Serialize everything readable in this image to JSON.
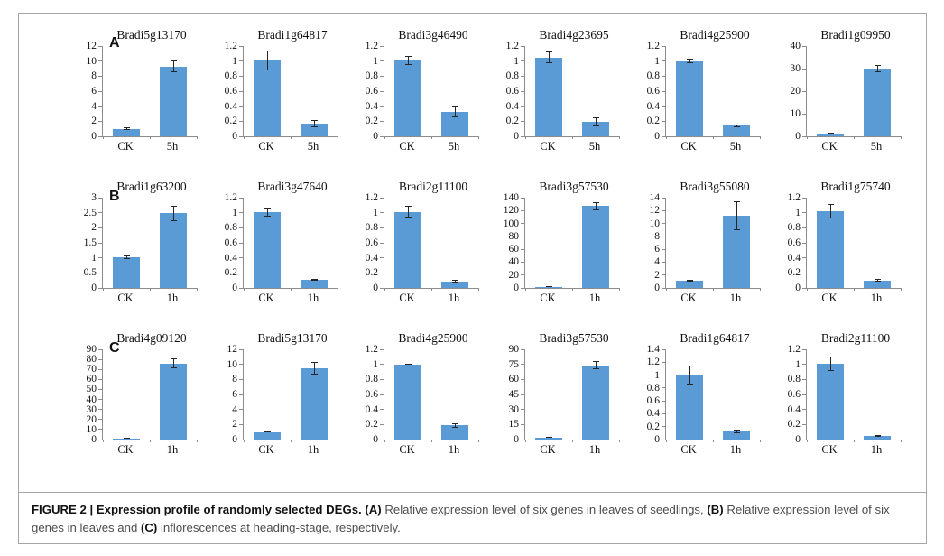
{
  "figure": {
    "panel_labels": [
      "A",
      "B",
      "C"
    ],
    "caption_segments": [
      {
        "text": "FIGURE 2 | Expression profile of randomly selected DEGs. ",
        "bold": true
      },
      {
        "text": "(A)",
        "bold": true
      },
      {
        "text": " Relative expression level of six genes in leaves of seedlings, ",
        "bold": false
      },
      {
        "text": "(B)",
        "bold": true
      },
      {
        "text": " Relative expression level of six genes in leaves and ",
        "bold": false
      },
      {
        "text": "(C)",
        "bold": true
      },
      {
        "text": " inflorescences at heading-stage, respectively.",
        "bold": false
      }
    ],
    "bar_color": "#5b9bd5",
    "axis_color": "#8c8c8c"
  },
  "chart_data": [
    {
      "type": "bar",
      "panel": "A",
      "title": "Bradi5g13170",
      "categories": [
        "CK",
        "5h"
      ],
      "values": [
        1.0,
        9.3
      ],
      "errors": [
        0.2,
        0.8
      ],
      "ylim": [
        0,
        12
      ],
      "ytick_step": 2
    },
    {
      "type": "bar",
      "panel": "A",
      "title": "Bradi1g64817",
      "categories": [
        "CK",
        "5h"
      ],
      "values": [
        1.01,
        0.17
      ],
      "errors": [
        0.13,
        0.05
      ],
      "ylim": [
        0,
        1.2
      ],
      "ytick_step": 0.2
    },
    {
      "type": "bar",
      "panel": "A",
      "title": "Bradi3g46490",
      "categories": [
        "CK",
        "5h"
      ],
      "values": [
        1.01,
        0.33
      ],
      "errors": [
        0.06,
        0.08
      ],
      "ylim": [
        0,
        1.2
      ],
      "ytick_step": 0.2
    },
    {
      "type": "bar",
      "panel": "A",
      "title": "Bradi4g23695",
      "categories": [
        "CK",
        "5h"
      ],
      "values": [
        1.05,
        0.19
      ],
      "errors": [
        0.08,
        0.06
      ],
      "ylim": [
        0,
        1.2
      ],
      "ytick_step": 0.2
    },
    {
      "type": "bar",
      "panel": "A",
      "title": "Bradi4g25900",
      "categories": [
        "CK",
        "5h"
      ],
      "values": [
        1.0,
        0.14
      ],
      "errors": [
        0.03,
        0.02
      ],
      "ylim": [
        0,
        1.2
      ],
      "ytick_step": 0.2
    },
    {
      "type": "bar",
      "panel": "A",
      "title": "Bradi1g09950",
      "categories": [
        "CK",
        "5h"
      ],
      "values": [
        1.2,
        30.0
      ],
      "errors": [
        0.3,
        1.5
      ],
      "ylim": [
        0,
        40
      ],
      "ytick_step": 10
    },
    {
      "type": "bar",
      "panel": "B",
      "title": "Bradi1g63200",
      "categories": [
        "CK",
        "1h"
      ],
      "values": [
        1.02,
        2.48
      ],
      "errors": [
        0.07,
        0.25
      ],
      "ylim": [
        0,
        3
      ],
      "ytick_step": 0.5
    },
    {
      "type": "bar",
      "panel": "B",
      "title": "Bradi3g47640",
      "categories": [
        "CK",
        "1h"
      ],
      "values": [
        1.01,
        0.11
      ],
      "errors": [
        0.06,
        0.01
      ],
      "ylim": [
        0,
        1.2
      ],
      "ytick_step": 0.2
    },
    {
      "type": "bar",
      "panel": "B",
      "title": "Bradi2g11100",
      "categories": [
        "CK",
        "1h"
      ],
      "values": [
        1.01,
        0.09
      ],
      "errors": [
        0.08,
        0.02
      ],
      "ylim": [
        0,
        1.2
      ],
      "ytick_step": 0.2
    },
    {
      "type": "bar",
      "panel": "B",
      "title": "Bradi3g57530",
      "categories": [
        "CK",
        "1h"
      ],
      "values": [
        2.0,
        127.0
      ],
      "errors": [
        1.0,
        6.0
      ],
      "ylim": [
        0,
        140
      ],
      "ytick_step": 20
    },
    {
      "type": "bar",
      "panel": "B",
      "title": "Bradi3g55080",
      "categories": [
        "CK",
        "1h"
      ],
      "values": [
        1.1,
        11.2
      ],
      "errors": [
        0.15,
        2.2
      ],
      "ylim": [
        0,
        14
      ],
      "ytick_step": 2
    },
    {
      "type": "bar",
      "panel": "B",
      "title": "Bradi1g75740",
      "categories": [
        "CK",
        "1h"
      ],
      "values": [
        1.02,
        0.1
      ],
      "errors": [
        0.1,
        0.02
      ],
      "ylim": [
        0,
        1.2
      ],
      "ytick_step": 0.2
    },
    {
      "type": "bar",
      "panel": "C",
      "title": "Bradi4g09120",
      "categories": [
        "CK",
        "1h"
      ],
      "values": [
        1.3,
        76.0
      ],
      "errors": [
        0.5,
        5.0
      ],
      "ylim": [
        0,
        90
      ],
      "ytick_step": 10
    },
    {
      "type": "bar",
      "panel": "C",
      "title": "Bradi5g13170",
      "categories": [
        "CK",
        "1h"
      ],
      "values": [
        1.0,
        9.5
      ],
      "errors": [
        0.1,
        0.85
      ],
      "ylim": [
        0,
        12
      ],
      "ytick_step": 2
    },
    {
      "type": "bar",
      "panel": "C",
      "title": "Bradi4g25900",
      "categories": [
        "CK",
        "1h"
      ],
      "values": [
        1.0,
        0.19
      ],
      "errors": [
        0.01,
        0.03
      ],
      "ylim": [
        0,
        1.2
      ],
      "ytick_step": 0.2
    },
    {
      "type": "bar",
      "panel": "C",
      "title": "Bradi3g57530",
      "categories": [
        "CK",
        "1h"
      ],
      "values": [
        2.0,
        74.0
      ],
      "errors": [
        0.5,
        4.0
      ],
      "ylim": [
        0,
        90
      ],
      "ytick_step": 15
    },
    {
      "type": "bar",
      "panel": "C",
      "title": "Bradi1g64817",
      "categories": [
        "CK",
        "1h"
      ],
      "values": [
        1.0,
        0.13
      ],
      "errors": [
        0.15,
        0.03
      ],
      "ylim": [
        0,
        1.4
      ],
      "ytick_step": 0.2
    },
    {
      "type": "bar",
      "panel": "C",
      "title": "Bradi2g11100",
      "categories": [
        "CK",
        "1h"
      ],
      "values": [
        1.01,
        0.05
      ],
      "errors": [
        0.1,
        0.01
      ],
      "ylim": [
        0,
        1.2
      ],
      "ytick_step": 0.2
    }
  ]
}
